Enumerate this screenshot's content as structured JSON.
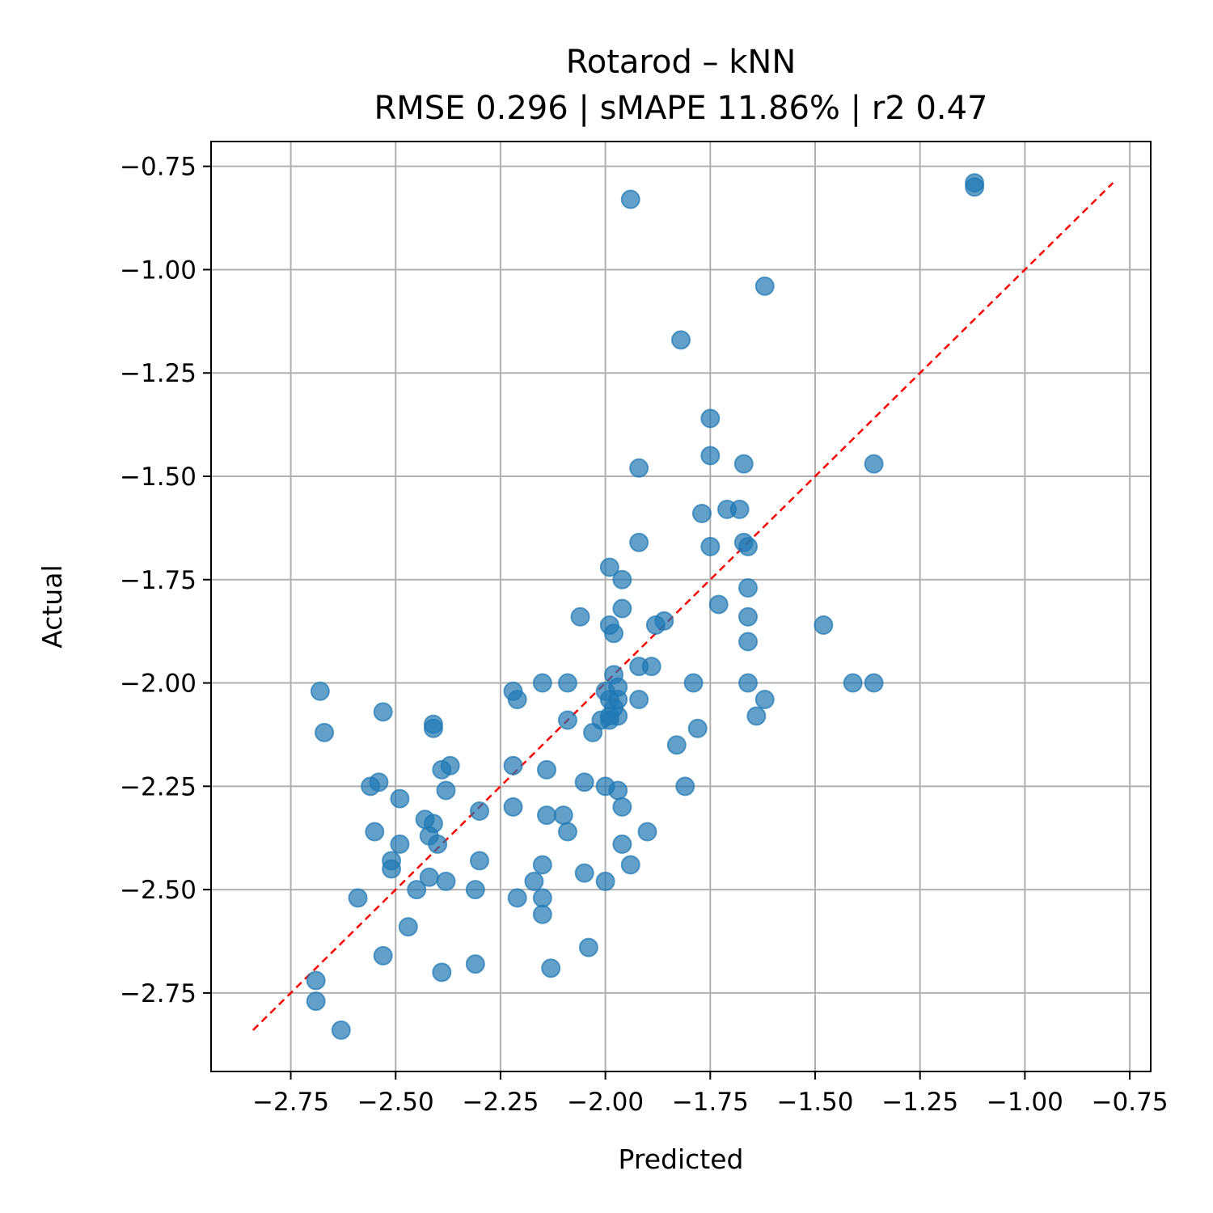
{
  "chart_data": {
    "type": "scatter",
    "title": "Rotarod – kNN",
    "subtitle": "RMSE 0.296 | sMAPE 11.86%  | r2 0.47",
    "xlabel": "Predicted",
    "ylabel": "Actual",
    "xlim": [
      -2.94,
      -0.7
    ],
    "ylim": [
      -2.94,
      -0.69
    ],
    "grid": true,
    "x_ticks": [
      -2.75,
      -2.5,
      -2.25,
      -2.0,
      -1.75,
      -1.5,
      -1.25,
      -1.0,
      -0.75
    ],
    "y_ticks": [
      -0.75,
      -1.0,
      -1.25,
      -1.5,
      -1.75,
      -2.0,
      -2.25,
      -2.5,
      -2.75
    ],
    "x_tick_labels": [
      "−2.75",
      "−2.50",
      "−2.25",
      "−2.00",
      "−1.75",
      "−1.50",
      "−1.25",
      "−1.00",
      "−0.75"
    ],
    "y_tick_labels": [
      "−0.75",
      "−1.00",
      "−1.25",
      "−1.50",
      "−1.75",
      "−2.00",
      "−2.25",
      "−2.50",
      "−2.75"
    ],
    "reference_line": {
      "from": [
        -2.84,
        -2.84
      ],
      "to": [
        -0.79,
        -0.79
      ],
      "color": "#ff0000",
      "style": "dashed"
    },
    "point_color": "#1f77b4",
    "points": [
      [
        -1.12,
        -0.79
      ],
      [
        -1.12,
        -0.8
      ],
      [
        -1.94,
        -0.83
      ],
      [
        -1.62,
        -1.04
      ],
      [
        -1.82,
        -1.17
      ],
      [
        -1.75,
        -1.36
      ],
      [
        -1.75,
        -1.45
      ],
      [
        -1.67,
        -1.47
      ],
      [
        -1.36,
        -1.47
      ],
      [
        -1.92,
        -1.48
      ],
      [
        -1.77,
        -1.59
      ],
      [
        -1.71,
        -1.58
      ],
      [
        -1.68,
        -1.58
      ],
      [
        -1.92,
        -1.66
      ],
      [
        -1.75,
        -1.67
      ],
      [
        -1.67,
        -1.66
      ],
      [
        -1.66,
        -1.67
      ],
      [
        -1.99,
        -1.72
      ],
      [
        -1.96,
        -1.75
      ],
      [
        -1.66,
        -1.77
      ],
      [
        -1.96,
        -1.82
      ],
      [
        -1.73,
        -1.81
      ],
      [
        -2.06,
        -1.84
      ],
      [
        -1.86,
        -1.85
      ],
      [
        -1.88,
        -1.86
      ],
      [
        -1.66,
        -1.84
      ],
      [
        -1.48,
        -1.86
      ],
      [
        -1.99,
        -1.86
      ],
      [
        -1.98,
        -1.88
      ],
      [
        -1.66,
        -1.9
      ],
      [
        -1.92,
        -1.96
      ],
      [
        -1.89,
        -1.96
      ],
      [
        -1.98,
        -1.98
      ],
      [
        -2.15,
        -2.0
      ],
      [
        -2.09,
        -2.0
      ],
      [
        -1.79,
        -2.0
      ],
      [
        -1.66,
        -2.0
      ],
      [
        -1.41,
        -2.0
      ],
      [
        -1.36,
        -2.0
      ],
      [
        -2.22,
        -2.02
      ],
      [
        -1.97,
        -2.01
      ],
      [
        -2.0,
        -2.02
      ],
      [
        -1.99,
        -2.04
      ],
      [
        -2.21,
        -2.04
      ],
      [
        -1.92,
        -2.04
      ],
      [
        -1.62,
        -2.04
      ],
      [
        -1.97,
        -2.04
      ],
      [
        -1.98,
        -2.06
      ],
      [
        -2.09,
        -2.09
      ],
      [
        -1.99,
        -2.08
      ],
      [
        -1.97,
        -2.08
      ],
      [
        -2.01,
        -2.09
      ],
      [
        -1.99,
        -2.09
      ],
      [
        -1.64,
        -2.08
      ],
      [
        -2.41,
        -2.1
      ],
      [
        -2.41,
        -2.11
      ],
      [
        -2.03,
        -2.12
      ],
      [
        -1.78,
        -2.11
      ],
      [
        -1.83,
        -2.15
      ],
      [
        -2.68,
        -2.02
      ],
      [
        -2.67,
        -2.12
      ],
      [
        -2.53,
        -2.07
      ],
      [
        -2.22,
        -2.2
      ],
      [
        -2.39,
        -2.21
      ],
      [
        -2.37,
        -2.2
      ],
      [
        -2.14,
        -2.21
      ],
      [
        -2.05,
        -2.24
      ],
      [
        -2.0,
        -2.25
      ],
      [
        -1.97,
        -2.26
      ],
      [
        -1.81,
        -2.25
      ],
      [
        -2.38,
        -2.26
      ],
      [
        -2.56,
        -2.25
      ],
      [
        -2.54,
        -2.24
      ],
      [
        -2.49,
        -2.28
      ],
      [
        -2.22,
        -2.3
      ],
      [
        -1.96,
        -2.3
      ],
      [
        -2.3,
        -2.31
      ],
      [
        -2.14,
        -2.32
      ],
      [
        -2.1,
        -2.32
      ],
      [
        -2.43,
        -2.33
      ],
      [
        -2.41,
        -2.34
      ],
      [
        -2.55,
        -2.36
      ],
      [
        -2.09,
        -2.36
      ],
      [
        -1.9,
        -2.36
      ],
      [
        -2.42,
        -2.37
      ],
      [
        -2.4,
        -2.39
      ],
      [
        -1.96,
        -2.39
      ],
      [
        -2.49,
        -2.39
      ],
      [
        -2.51,
        -2.43
      ],
      [
        -2.3,
        -2.43
      ],
      [
        -2.51,
        -2.45
      ],
      [
        -2.15,
        -2.44
      ],
      [
        -1.94,
        -2.44
      ],
      [
        -2.05,
        -2.46
      ],
      [
        -2.42,
        -2.47
      ],
      [
        -2.38,
        -2.48
      ],
      [
        -2.17,
        -2.48
      ],
      [
        -2.0,
        -2.48
      ],
      [
        -2.45,
        -2.5
      ],
      [
        -2.31,
        -2.5
      ],
      [
        -2.59,
        -2.52
      ],
      [
        -2.21,
        -2.52
      ],
      [
        -2.15,
        -2.52
      ],
      [
        -2.15,
        -2.56
      ],
      [
        -2.47,
        -2.59
      ],
      [
        -2.04,
        -2.64
      ],
      [
        -2.53,
        -2.66
      ],
      [
        -2.31,
        -2.68
      ],
      [
        -2.13,
        -2.69
      ],
      [
        -2.39,
        -2.7
      ],
      [
        -2.69,
        -2.72
      ],
      [
        -2.69,
        -2.77
      ],
      [
        -2.63,
        -2.84
      ]
    ]
  }
}
